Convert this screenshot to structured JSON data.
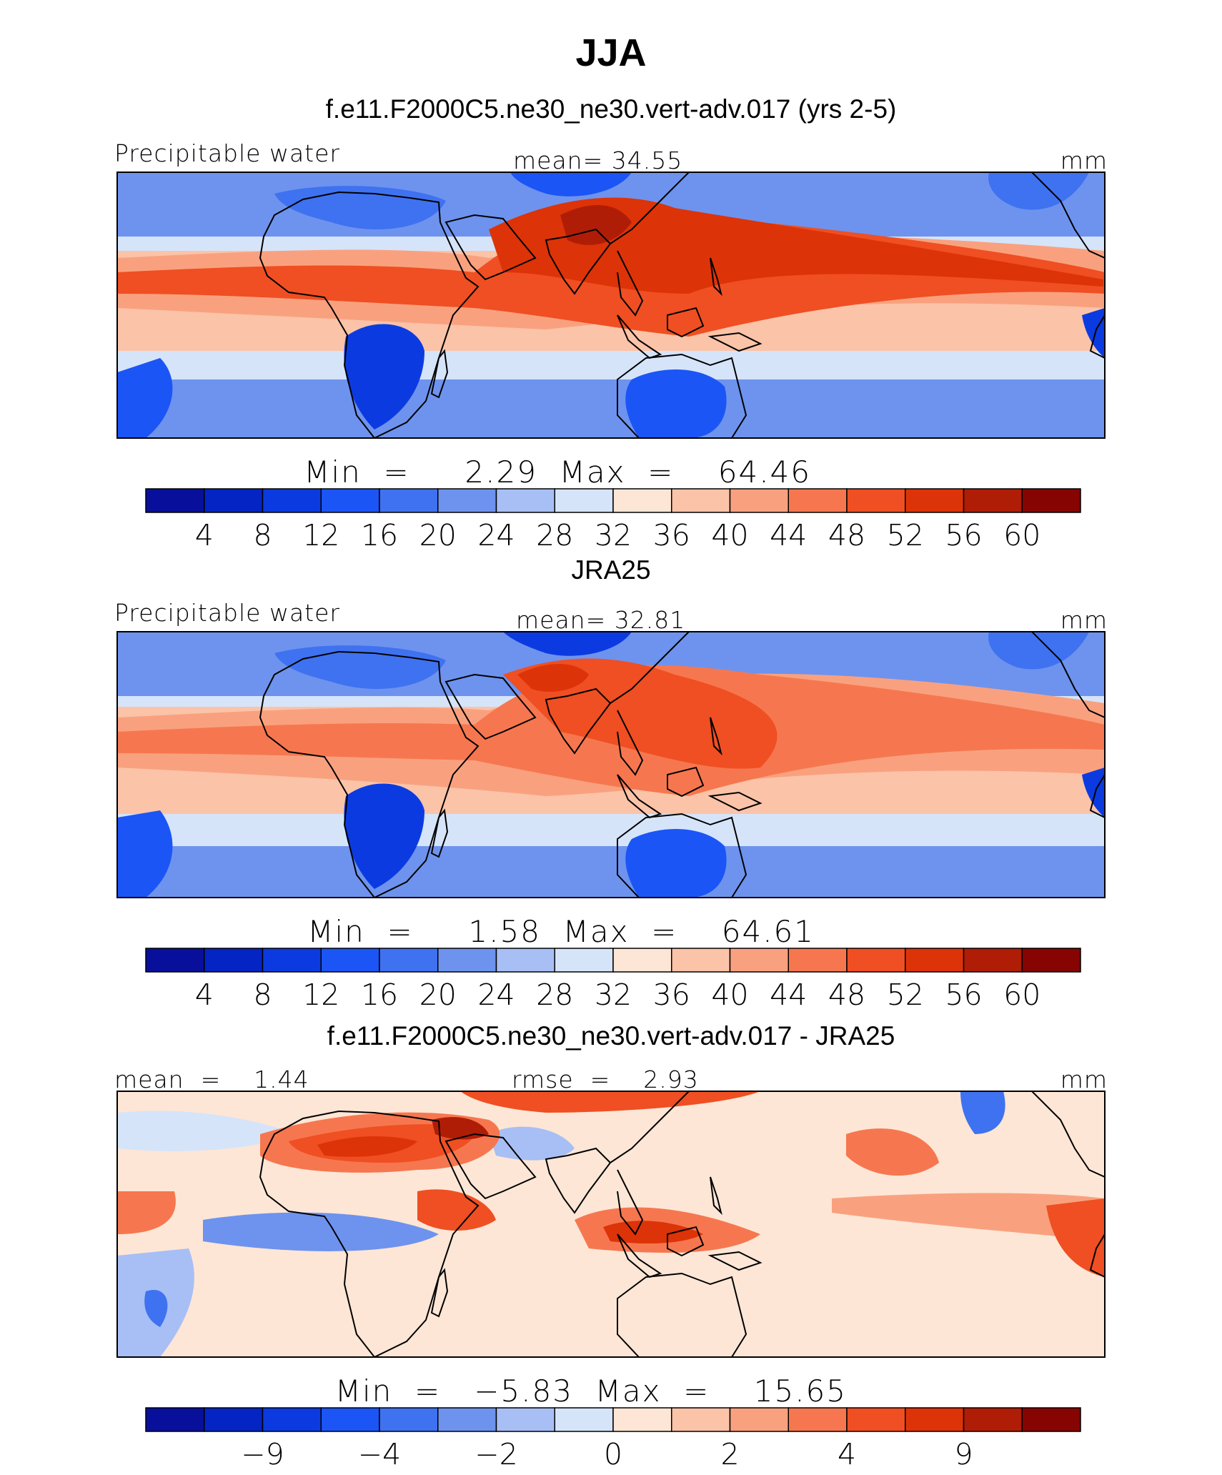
{
  "season_title": "JJA",
  "colors": {
    "bar": [
      "#08109b",
      "#0425c3",
      "#0b3be0",
      "#1b55f5",
      "#3f72f0",
      "#6e93ee",
      "#a7bff5",
      "#d6e4f9",
      "#fde6d6",
      "#fbc3a8",
      "#f9a17f",
      "#f6774f",
      "#ef4f22",
      "#dd3308",
      "#b01d07",
      "#860503"
    ],
    "coast": "#000000",
    "frame": "#000000"
  },
  "chart_data": [
    {
      "type": "heatmap",
      "panel": "model",
      "title": "f.e11.F2000C5.ne30_ne30.vert-adv.017 (yrs 2-5)",
      "variable": "Precipitable water",
      "mean_text": "mean=   34.55",
      "units": "mm",
      "minmax_text": "Min  =     2.29  Max  =    64.46",
      "min": 2.29,
      "max": 64.46,
      "mean": 34.55,
      "levels": [
        4,
        8,
        12,
        16,
        20,
        24,
        28,
        32,
        36,
        40,
        44,
        48,
        52,
        56,
        60
      ],
      "tick_labels": [
        "4",
        "8",
        "12",
        "16",
        "20",
        "24",
        "28",
        "32",
        "36",
        "40",
        "44",
        "48",
        "52",
        "56",
        "60"
      ]
    },
    {
      "type": "heatmap",
      "panel": "obs",
      "title": "JRA25",
      "variable": "Precipitable water",
      "mean_text": "mean=   32.81",
      "units": "mm",
      "minmax_text": "Min  =     1.58  Max  =    64.61",
      "min": 1.58,
      "max": 64.61,
      "mean": 32.81,
      "levels": [
        4,
        8,
        12,
        16,
        20,
        24,
        28,
        32,
        36,
        40,
        44,
        48,
        52,
        56,
        60
      ],
      "tick_labels": [
        "4",
        "8",
        "12",
        "16",
        "20",
        "24",
        "28",
        "32",
        "36",
        "40",
        "44",
        "48",
        "52",
        "56",
        "60"
      ]
    },
    {
      "type": "heatmap",
      "panel": "diff",
      "title": "f.e11.F2000C5.ne30_ne30.vert-adv.017 - JRA25",
      "left_text": "mean  =    1.44",
      "rmse_text": "rmse  =    2.93",
      "units": "mm",
      "minmax_text": "Min  =   −5.83  Max  =    15.65",
      "min": -5.83,
      "max": 15.65,
      "mean": 1.44,
      "rmse": 2.93,
      "tick_labels": [
        "−9",
        "−4",
        "−2",
        "0",
        "2",
        "4",
        "9"
      ],
      "tick_positions": [
        2,
        4,
        6,
        8,
        10,
        12,
        14
      ]
    }
  ]
}
